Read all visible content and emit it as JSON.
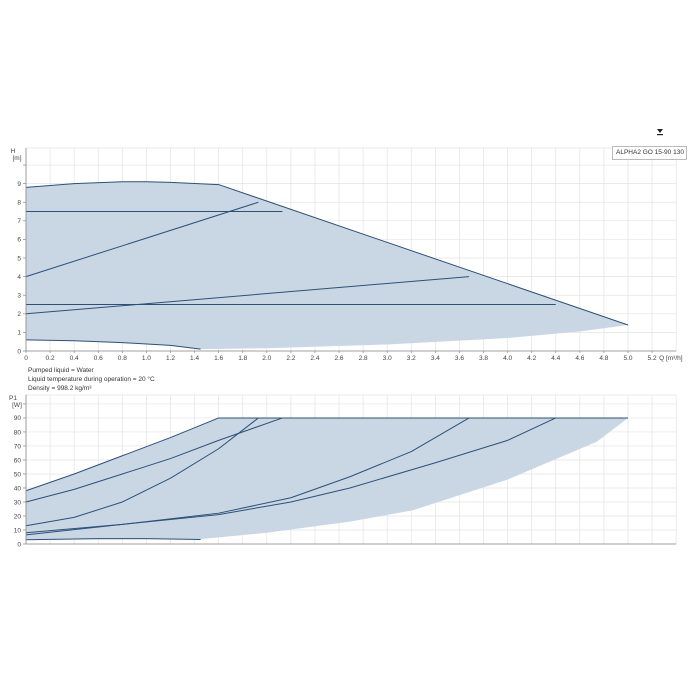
{
  "download_icon": "download-icon",
  "legend_label": "ALPHA2 GO 15-90 130",
  "info": {
    "line1": "Pumped liquid = Water",
    "line2": "Liquid temperature during operation = 20 °C",
    "line3": "Density = 998.2 kg/m³"
  },
  "colors": {
    "fill": "#c9d7e5",
    "line": "#2d5078",
    "grid": "#e3e3e3"
  },
  "chart_data": [
    {
      "type": "area",
      "ylabel": "H",
      "yunit": "[m]",
      "xlabel": "Q [m³/h]",
      "xlim": [
        0,
        5.4
      ],
      "ylim": [
        0,
        10
      ],
      "grid": true,
      "xticks": [
        "0",
        "0.2",
        "0.4",
        "0.6",
        "0.8",
        "1.0",
        "1.2",
        "1.4",
        "1.6",
        "1.8",
        "2.0",
        "2.2",
        "2.4",
        "2.6",
        "2.8",
        "3.0",
        "3.2",
        "3.4",
        "3.6",
        "3.8",
        "4.0",
        "4.2",
        "4.4",
        "4.6",
        "4.8",
        "5.0",
        "5.2"
      ],
      "yticks": [
        "0",
        "1",
        "2",
        "3",
        "4",
        "5",
        "6",
        "7",
        "8",
        "9"
      ],
      "envelope_upper": [
        [
          0,
          8.8
        ],
        [
          0.4,
          9.0
        ],
        [
          0.8,
          9.1
        ],
        [
          1.0,
          9.1
        ],
        [
          1.2,
          9.07
        ],
        [
          1.6,
          8.95
        ],
        [
          5.0,
          1.4
        ]
      ],
      "envelope_lower": [
        [
          5.0,
          1.4
        ],
        [
          4.6,
          1.05
        ],
        [
          4.0,
          0.7
        ],
        [
          3.0,
          0.35
        ],
        [
          2.0,
          0.15
        ],
        [
          1.45,
          0.1
        ],
        [
          1.2,
          0.3
        ],
        [
          0.8,
          0.45
        ],
        [
          0.4,
          0.55
        ],
        [
          0,
          0.6
        ]
      ],
      "series": [
        {
          "points": [
            [
              0,
              8.8
            ],
            [
              0.4,
              9.0
            ],
            [
              0.8,
              9.1
            ],
            [
              1.0,
              9.1
            ],
            [
              1.2,
              9.07
            ],
            [
              1.6,
              8.95
            ],
            [
              5.0,
              1.4
            ]
          ]
        },
        {
          "points": [
            [
              0,
              7.5
            ],
            [
              2.13,
              7.5
            ]
          ]
        },
        {
          "points": [
            [
              0,
              4
            ],
            [
              1.93,
              8
            ]
          ]
        },
        {
          "points": [
            [
              0,
              2.5
            ],
            [
              4.4,
              2.5
            ]
          ]
        },
        {
          "points": [
            [
              0,
              2
            ],
            [
              3.68,
              4
            ]
          ]
        },
        {
          "points": [
            [
              0,
              0.6
            ],
            [
              0.4,
              0.55
            ],
            [
              0.8,
              0.45
            ],
            [
              1.2,
              0.3
            ],
            [
              1.45,
              0.1
            ]
          ]
        }
      ]
    },
    {
      "type": "area",
      "ylabel": "P1",
      "yunit": "[W]",
      "xlim": [
        0,
        5.4
      ],
      "ylim": [
        0,
        100
      ],
      "grid": true,
      "yticks": [
        "0",
        "10",
        "20",
        "30",
        "40",
        "50",
        "60",
        "70",
        "80",
        "90"
      ],
      "envelope_upper": [
        [
          0,
          38
        ],
        [
          0.4,
          50
        ],
        [
          0.8,
          63
        ],
        [
          1.2,
          76
        ],
        [
          1.6,
          90
        ],
        [
          5.0,
          90
        ]
      ],
      "envelope_lower": [
        [
          5.0,
          90
        ],
        [
          4.74,
          73
        ],
        [
          4.0,
          46
        ],
        [
          3.21,
          24
        ],
        [
          2.69,
          16
        ],
        [
          2.0,
          8
        ],
        [
          1.45,
          3.5
        ],
        [
          0,
          3
        ]
      ],
      "series": [
        {
          "points": [
            [
              0,
              38
            ],
            [
              0.4,
              50
            ],
            [
              0.8,
              63
            ],
            [
              1.2,
              76
            ],
            [
              1.6,
              90
            ],
            [
              5.0,
              90
            ]
          ]
        },
        {
          "points": [
            [
              0,
              30
            ],
            [
              0.4,
              39
            ],
            [
              0.8,
              50
            ],
            [
              1.2,
              61
            ],
            [
              1.6,
              74
            ],
            [
              2.13,
              90
            ]
          ]
        },
        {
          "points": [
            [
              0,
              13
            ],
            [
              0.4,
              19
            ],
            [
              0.8,
              30
            ],
            [
              1.2,
              47
            ],
            [
              1.6,
              68
            ],
            [
              1.93,
              90
            ]
          ]
        },
        {
          "points": [
            [
              0,
              8
            ],
            [
              0.8,
              14
            ],
            [
              1.6,
              22
            ],
            [
              2.2,
              33
            ],
            [
              2.69,
              48
            ],
            [
              3.2,
              66
            ],
            [
              3.68,
              90
            ]
          ]
        },
        {
          "points": [
            [
              0,
              6.5
            ],
            [
              0.8,
              14
            ],
            [
              1.6,
              21
            ],
            [
              2.2,
              30
            ],
            [
              2.69,
              40
            ],
            [
              3.4,
              58
            ],
            [
              4.0,
              74
            ],
            [
              4.4,
              90
            ]
          ]
        },
        {
          "points": [
            [
              0,
              3
            ],
            [
              0.6,
              3.8
            ],
            [
              1.0,
              3.8
            ],
            [
              1.45,
              3.2
            ]
          ]
        }
      ]
    }
  ]
}
